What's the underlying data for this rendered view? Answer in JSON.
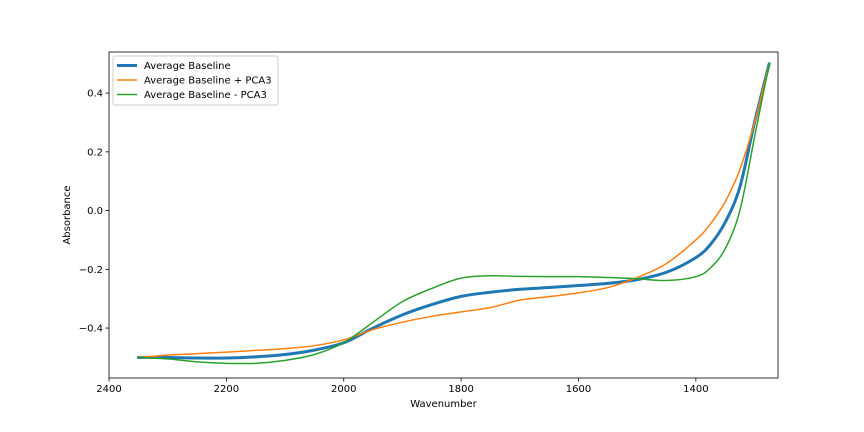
{
  "chart_data": {
    "type": "line",
    "title": "",
    "xlabel": "Wavenumber",
    "ylabel": "Absorbance",
    "xlim": [
      2400,
      1260
    ],
    "ylim": [
      -0.57,
      0.54
    ],
    "x_inverted": true,
    "xticks": [
      2400,
      2200,
      2000,
      1800,
      1600,
      1400
    ],
    "yticks": [
      -0.4,
      -0.2,
      0.0,
      0.2,
      0.4
    ],
    "ytick_labels": [
      "−0.4",
      "−0.2",
      "0.0",
      "0.2",
      "0.4"
    ],
    "grid": false,
    "legend_position": "top-left",
    "x": [
      2350,
      2300,
      2250,
      2200,
      2150,
      2100,
      2050,
      2000,
      1950,
      1900,
      1850,
      1800,
      1750,
      1700,
      1650,
      1600,
      1550,
      1500,
      1450,
      1400,
      1375,
      1350,
      1325,
      1300,
      1275
    ],
    "series": [
      {
        "name": "Average Baseline",
        "color": "#1f77b4",
        "width": 3,
        "values": [
          -0.5,
          -0.5,
          -0.502,
          -0.502,
          -0.498,
          -0.49,
          -0.475,
          -0.45,
          -0.4,
          -0.355,
          -0.32,
          -0.292,
          -0.278,
          -0.268,
          -0.262,
          -0.255,
          -0.248,
          -0.235,
          -0.21,
          -0.16,
          -0.115,
          -0.04,
          0.08,
          0.3,
          0.5
        ]
      },
      {
        "name": "Average Baseline + PCA3",
        "color": "#ff7f0e",
        "width": 1.5,
        "values": [
          -0.5,
          -0.492,
          -0.487,
          -0.482,
          -0.476,
          -0.47,
          -0.46,
          -0.44,
          -0.405,
          -0.38,
          -0.36,
          -0.345,
          -0.33,
          -0.305,
          -0.293,
          -0.28,
          -0.262,
          -0.228,
          -0.18,
          -0.1,
          -0.045,
          0.03,
          0.14,
          0.3,
          0.5
        ]
      },
      {
        "name": "Average Baseline - PCA3",
        "color": "#2ca02c",
        "width": 1.5,
        "values": [
          -0.5,
          -0.505,
          -0.515,
          -0.52,
          -0.52,
          -0.51,
          -0.49,
          -0.45,
          -0.38,
          -0.31,
          -0.265,
          -0.23,
          -0.222,
          -0.224,
          -0.225,
          -0.225,
          -0.228,
          -0.232,
          -0.238,
          -0.225,
          -0.195,
          -0.13,
          0.0,
          0.25,
          0.5
        ]
      }
    ]
  }
}
